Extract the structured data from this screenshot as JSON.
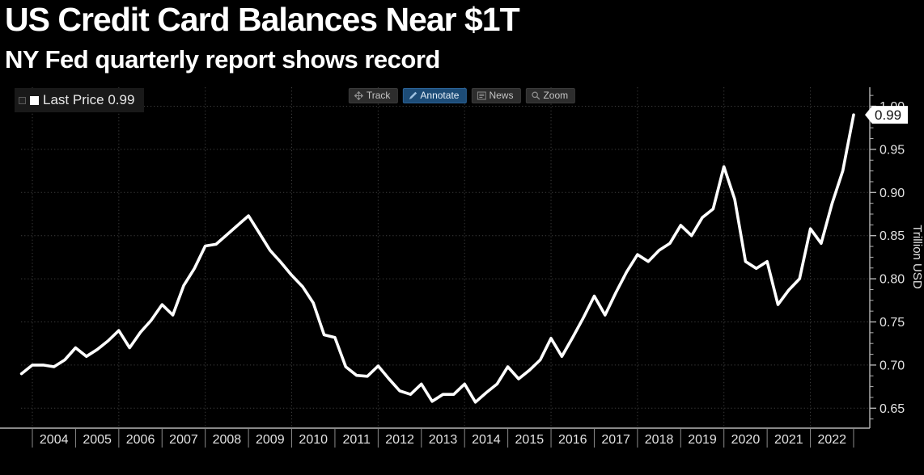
{
  "header": {
    "title": "US Credit Card Balances Near $1T",
    "subtitle": "NY Fed quarterly report shows record"
  },
  "toolbar": {
    "buttons": [
      {
        "label": "Track",
        "icon": "move-icon",
        "active": false
      },
      {
        "label": "Annotate",
        "icon": "pencil-icon",
        "active": true
      },
      {
        "label": "News",
        "icon": "news-icon",
        "active": false
      },
      {
        "label": "Zoom",
        "icon": "magnifier-icon",
        "active": false
      }
    ]
  },
  "legend": {
    "label": "Last Price",
    "value": "0.99",
    "marker_color": "#ffffff"
  },
  "chart_data": {
    "type": "line",
    "title": "US Credit Card Balances Near $1T",
    "subtitle": "NY Fed quarterly report shows record",
    "xlabel": "",
    "ylabel": "Trillion USD",
    "x_unit": "quarter",
    "ylim": [
      0.627,
      1.022
    ],
    "y_ticks": [
      0.65,
      0.7,
      0.75,
      0.8,
      0.85,
      0.9,
      0.95,
      1.0
    ],
    "x_tick_years": [
      "2004",
      "2005",
      "2006",
      "2007",
      "2008",
      "2009",
      "2010",
      "2011",
      "2012",
      "2013",
      "2014",
      "2015",
      "2016",
      "2017",
      "2018",
      "2019",
      "2020",
      "2021",
      "2022"
    ],
    "grid": "dotted, horizontal at each 0.05, vertical every 2 years",
    "legend_position": "top-left",
    "last_price": 0.99,
    "last_price_label": "0.99",
    "series": [
      {
        "name": "Last Price",
        "color": "#ffffff",
        "points": [
          [
            "2003Q3",
            0.69
          ],
          [
            "2003Q4",
            0.7
          ],
          [
            "2004Q1",
            0.7
          ],
          [
            "2004Q2",
            0.698
          ],
          [
            "2004Q3",
            0.706
          ],
          [
            "2004Q4",
            0.72
          ],
          [
            "2005Q1",
            0.71
          ],
          [
            "2005Q2",
            0.718
          ],
          [
            "2005Q3",
            0.728
          ],
          [
            "2005Q4",
            0.74
          ],
          [
            "2006Q1",
            0.72
          ],
          [
            "2006Q2",
            0.738
          ],
          [
            "2006Q3",
            0.752
          ],
          [
            "2006Q4",
            0.77
          ],
          [
            "2007Q1",
            0.758
          ],
          [
            "2007Q2",
            0.792
          ],
          [
            "2007Q3",
            0.812
          ],
          [
            "2007Q4",
            0.838
          ],
          [
            "2008Q1",
            0.84
          ],
          [
            "2008Q2",
            0.851
          ],
          [
            "2008Q3",
            0.862
          ],
          [
            "2008Q4",
            0.873
          ],
          [
            "2009Q1",
            0.853
          ],
          [
            "2009Q2",
            0.833
          ],
          [
            "2009Q3",
            0.819
          ],
          [
            "2009Q4",
            0.804
          ],
          [
            "2010Q1",
            0.791
          ],
          [
            "2010Q2",
            0.772
          ],
          [
            "2010Q3",
            0.735
          ],
          [
            "2010Q4",
            0.732
          ],
          [
            "2011Q1",
            0.698
          ],
          [
            "2011Q2",
            0.688
          ],
          [
            "2011Q3",
            0.687
          ],
          [
            "2011Q4",
            0.699
          ],
          [
            "2012Q1",
            0.684
          ],
          [
            "2012Q2",
            0.67
          ],
          [
            "2012Q3",
            0.666
          ],
          [
            "2012Q4",
            0.678
          ],
          [
            "2013Q1",
            0.658
          ],
          [
            "2013Q2",
            0.666
          ],
          [
            "2013Q3",
            0.666
          ],
          [
            "2013Q4",
            0.678
          ],
          [
            "2014Q1",
            0.657
          ],
          [
            "2014Q2",
            0.668
          ],
          [
            "2014Q3",
            0.678
          ],
          [
            "2014Q4",
            0.698
          ],
          [
            "2015Q1",
            0.684
          ],
          [
            "2015Q2",
            0.694
          ],
          [
            "2015Q3",
            0.706
          ],
          [
            "2015Q4",
            0.731
          ],
          [
            "2016Q1",
            0.71
          ],
          [
            "2016Q2",
            0.732
          ],
          [
            "2016Q3",
            0.755
          ],
          [
            "2016Q4",
            0.78
          ],
          [
            "2017Q1",
            0.758
          ],
          [
            "2017Q2",
            0.784
          ],
          [
            "2017Q3",
            0.808
          ],
          [
            "2017Q4",
            0.828
          ],
          [
            "2018Q1",
            0.82
          ],
          [
            "2018Q2",
            0.833
          ],
          [
            "2018Q3",
            0.841
          ],
          [
            "2018Q4",
            0.862
          ],
          [
            "2019Q1",
            0.85
          ],
          [
            "2019Q2",
            0.871
          ],
          [
            "2019Q3",
            0.881
          ],
          [
            "2019Q4",
            0.93
          ],
          [
            "2020Q1",
            0.892
          ],
          [
            "2020Q2",
            0.82
          ],
          [
            "2020Q3",
            0.812
          ],
          [
            "2020Q4",
            0.82
          ],
          [
            "2021Q1",
            0.77
          ],
          [
            "2021Q2",
            0.787
          ],
          [
            "2021Q3",
            0.8
          ],
          [
            "2021Q4",
            0.858
          ],
          [
            "2022Q1",
            0.841
          ],
          [
            "2022Q2",
            0.887
          ],
          [
            "2022Q3",
            0.925
          ],
          [
            "2022Q4",
            0.99
          ]
        ]
      }
    ]
  },
  "colors": {
    "background": "#000000",
    "line": "#ffffff",
    "grid": "#3d3d3d",
    "axis": "#b5b5b5",
    "tick_label": "#e2e2e2",
    "toolbar_active": "#1d4c77",
    "badge_bg": "#ffffff",
    "badge_text": "#111111"
  }
}
